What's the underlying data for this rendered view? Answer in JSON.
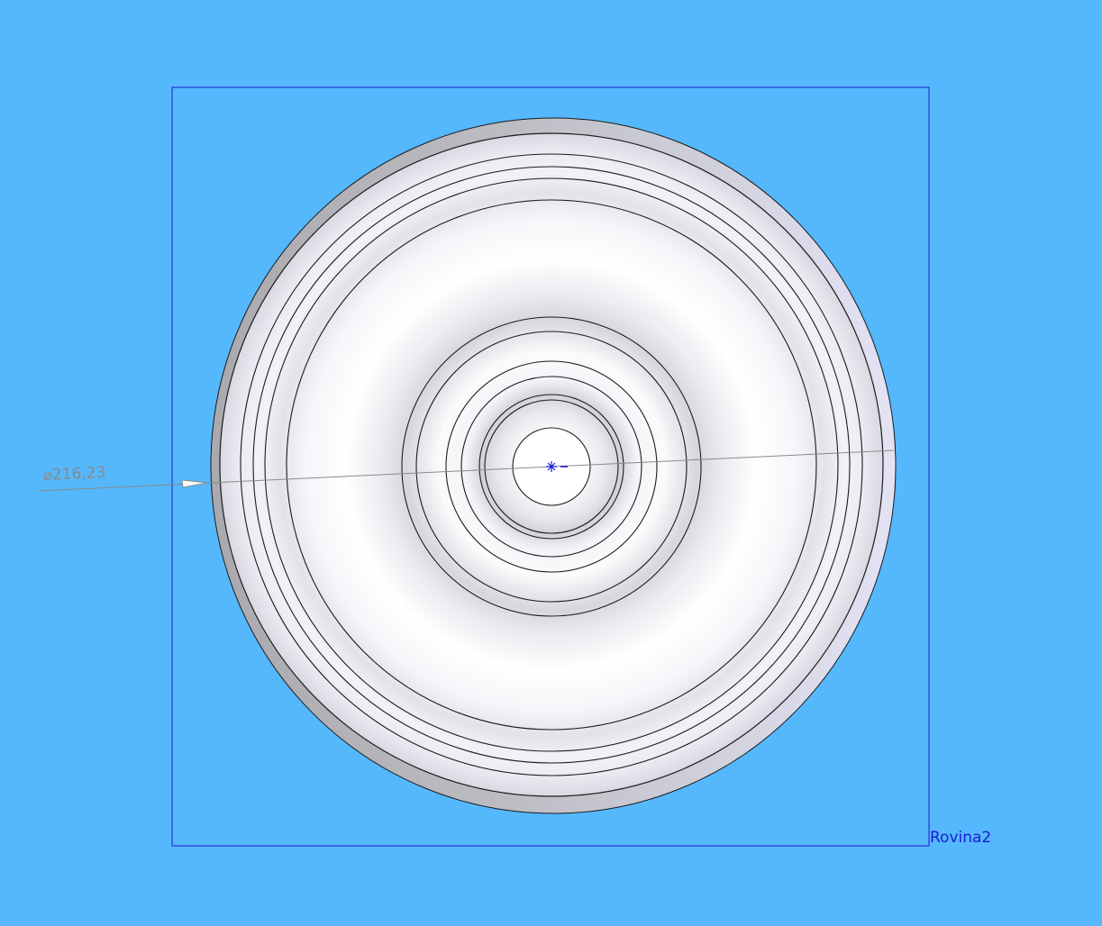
{
  "viewport": {
    "background_color": "#55b8fd"
  },
  "plane": {
    "label": "Rovina2",
    "color": "#1a1ad0"
  },
  "dimension": {
    "label": "⌀216,23",
    "color": "#8a8a8a"
  },
  "part": {
    "name": "rotational-part",
    "edge_color": "#1c1c1c"
  },
  "origin": {
    "icon": "origin-marker-icon",
    "color": "#1a1ad0"
  }
}
